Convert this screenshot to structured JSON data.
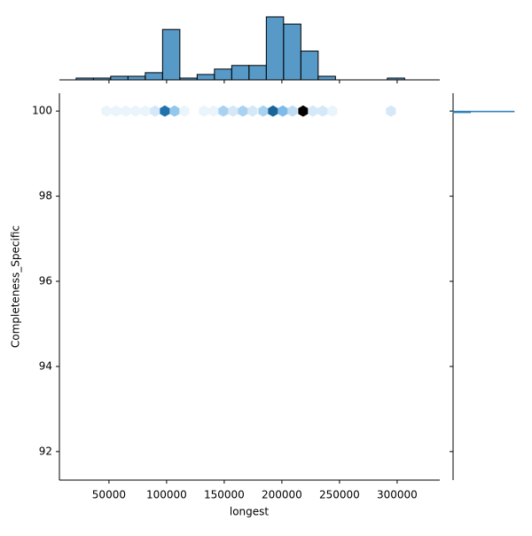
{
  "chart_data": {
    "type": "hexbin",
    "x_label": "longest",
    "y_label": "Completeness_Specific",
    "color": "#1f77b4",
    "xlim": [
      7000,
      337000
    ],
    "ylim": [
      91.33,
      100.42
    ],
    "xticks": [
      50000,
      100000,
      150000,
      200000,
      250000,
      300000
    ],
    "yticks": [
      92,
      94,
      96,
      98,
      100
    ],
    "hexbins": {
      "x": [
        47700,
        56150,
        64600,
        73100,
        81550,
        90000,
        98450,
        106900,
        115400,
        132300,
        140750,
        149200,
        157700,
        166150,
        174600,
        183850,
        192300,
        200750,
        209250,
        218450,
        226900,
        235400,
        243850,
        294600
      ],
      "y": [
        100,
        100,
        100,
        100,
        100,
        100,
        100,
        100,
        100,
        100,
        100,
        100,
        100,
        100,
        100,
        100,
        100,
        100,
        100,
        100,
        100,
        100,
        100,
        100
      ],
      "counts": [
        1,
        1,
        1,
        1,
        1,
        2,
        12,
        5,
        1,
        1,
        1,
        4,
        2,
        4,
        2,
        4,
        13,
        6,
        3,
        20,
        2,
        2,
        1,
        2
      ]
    },
    "marginal_x": {
      "bins": [
        21500,
        36500,
        51500,
        66500,
        81500,
        96500,
        111500,
        126500,
        141500,
        156500,
        171500,
        186500,
        201500,
        216500,
        231500,
        246500,
        261500,
        276500,
        291500,
        306500,
        321500
      ],
      "counts": [
        1,
        1,
        2,
        2,
        4,
        28,
        1,
        3,
        6,
        8,
        8,
        35,
        31,
        16,
        2,
        0,
        0,
        0,
        1,
        0
      ]
    },
    "marginal_y": {
      "bins": [
        99.96,
        99.98,
        100.0,
        100.02
      ],
      "counts": [
        40,
        140,
        0
      ]
    }
  }
}
